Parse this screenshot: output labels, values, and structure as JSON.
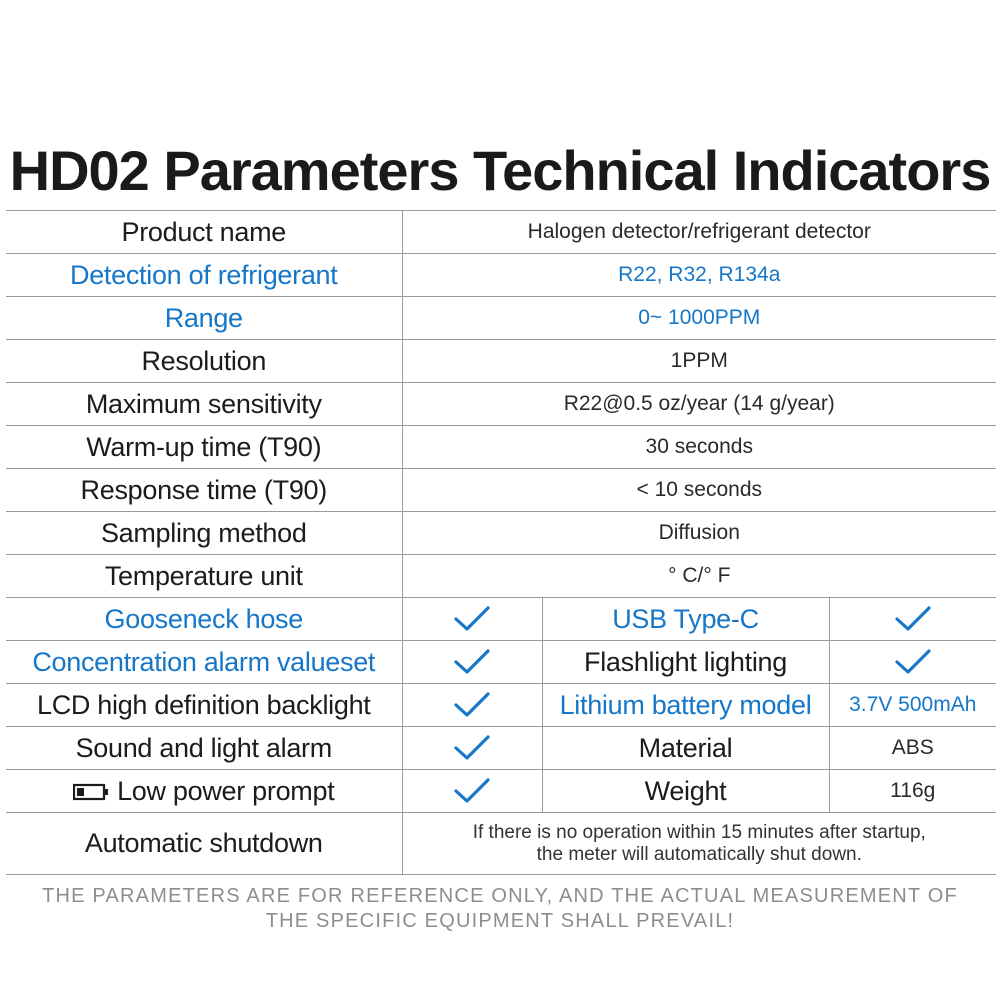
{
  "title": "HD02 Parameters Technical Indicators",
  "colors": {
    "accent": "#1677c8",
    "text": "#1c1c1c",
    "border": "#9a9a9a",
    "footer": "#8d8d8d"
  },
  "rows": {
    "product_name": {
      "label": "Product name",
      "value": "Halogen detector/refrigerant detector"
    },
    "refrigerant": {
      "label": "Detection of refrigerant",
      "value": "R22, R32, R134a"
    },
    "range": {
      "label": "Range",
      "value": "0~ 1000PPM"
    },
    "resolution": {
      "label": "Resolution",
      "value": "1PPM"
    },
    "sensitivity": {
      "label": "Maximum sensitivity",
      "value": "R22@0.5 oz/year (14 g/year)"
    },
    "warmup": {
      "label": "Warm-up time (T90)",
      "value": "30 seconds"
    },
    "response": {
      "label": "Response time (T90)",
      "value": "< 10 seconds"
    },
    "sampling": {
      "label": "Sampling method",
      "value": "Diffusion"
    },
    "temperature": {
      "label": "Temperature unit",
      "value": "° C/° F"
    }
  },
  "features": {
    "gooseneck": {
      "label": "Gooseneck hose",
      "icon": "check-icon"
    },
    "usb": {
      "label": "USB Type-C",
      "icon": "check-icon"
    },
    "alarm_value": {
      "label": "Concentration alarm valueset",
      "icon": "check-icon"
    },
    "flashlight": {
      "label": "Flashlight lighting",
      "icon": "check-icon"
    },
    "lcd": {
      "label": "LCD high definition backlight",
      "icon": "check-icon"
    },
    "battery": {
      "label": "Lithium battery model",
      "value": "3.7V 500mAh"
    },
    "sound_light": {
      "label": "Sound and light alarm",
      "icon": "check-icon"
    },
    "material": {
      "label": "Material",
      "value": "ABS"
    },
    "low_power": {
      "label": "Low power prompt",
      "icon": "check-icon",
      "prefix_icon": "battery-low-icon"
    },
    "weight": {
      "label": "Weight",
      "value": "116g"
    }
  },
  "shutdown": {
    "label": "Automatic shutdown",
    "line1": "If there is no operation within 15 minutes after startup,",
    "line2": "the meter will automatically shut down."
  },
  "footer": {
    "line1": "THE PARAMETERS ARE FOR REFERENCE ONLY, AND THE ACTUAL MEASUREMENT OF",
    "line2": "THE SPECIFIC EQUIPMENT SHALL PREVAIL!"
  }
}
